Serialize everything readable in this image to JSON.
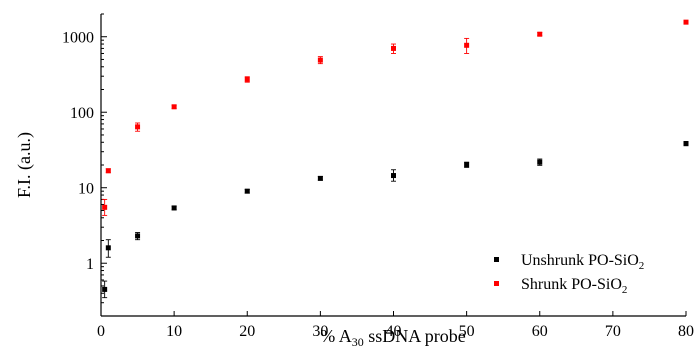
{
  "chart_data": {
    "type": "scatter",
    "title": "",
    "xlabel": {
      "prefix": "% A",
      "sub": "30",
      "suffix": " ssDNA probe"
    },
    "ylabel": "F.I. (a.u.)",
    "xlim": [
      0,
      80
    ],
    "ylim": [
      0.2,
      2000
    ],
    "yscale": "log",
    "xticks": [
      0,
      10,
      20,
      30,
      40,
      50,
      60,
      70,
      80
    ],
    "yticks": [
      1,
      10,
      100,
      1000
    ],
    "grid": false,
    "legend_position": "bottom-right",
    "series": [
      {
        "name_main": "Unshrunk PO-SiO",
        "name_sub": "2",
        "color": "#000000",
        "x": [
          0.5,
          1,
          5,
          10,
          20,
          30,
          40,
          50,
          60,
          80
        ],
        "y": [
          0.45,
          1.6,
          2.3,
          5.4,
          9.0,
          13.3,
          14.5,
          20.2,
          21.8,
          38.5
        ],
        "err_low": [
          0.35,
          1.2,
          2.05,
          5.1,
          8.5,
          12.6,
          12.2,
          18.6,
          19.8,
          36.0
        ],
        "err_high": [
          0.58,
          2.05,
          2.55,
          5.7,
          9.5,
          14.1,
          17.3,
          21.8,
          24.0,
          41.0
        ]
      },
      {
        "name_main": "Shrunk PO-SiO",
        "name_sub": "2",
        "color": "#ff0000",
        "x": [
          0.5,
          1,
          5,
          10,
          20,
          30,
          40,
          50,
          60,
          80
        ],
        "y": [
          5.5,
          16.8,
          64,
          118,
          272,
          490,
          700,
          770,
          1080,
          1560
        ],
        "err_low": [
          4.3,
          15.8,
          56,
          112,
          250,
          440,
          600,
          600,
          1030,
          1500
        ],
        "err_high": [
          7.0,
          17.8,
          72,
          124,
          295,
          545,
          800,
          950,
          1140,
          1620
        ]
      }
    ]
  }
}
